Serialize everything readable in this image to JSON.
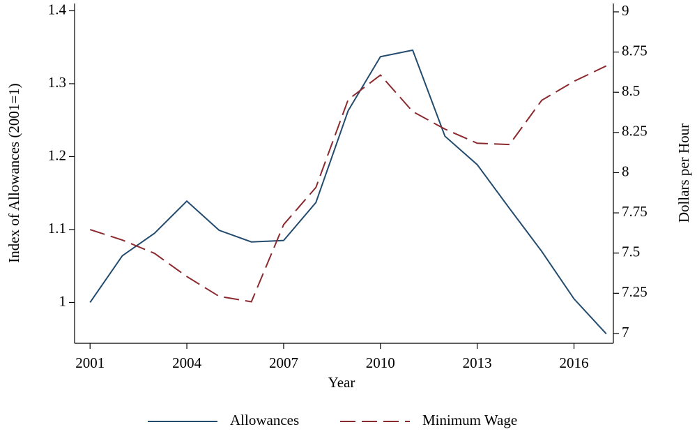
{
  "chart_data": {
    "type": "line",
    "x_label": "Year",
    "y_label": "Index of Allowances (2001=1)",
    "y2_label": "Dollars per Hour",
    "x": [
      2001,
      2002,
      2003,
      2004,
      2005,
      2006,
      2007,
      2008,
      2009,
      2010,
      2011,
      2012,
      2013,
      2014,
      2015,
      2016,
      2017
    ],
    "series": [
      {
        "name": "Allowances",
        "color": "#234b6e",
        "dash": "solid",
        "values": [
          1.0,
          1.064,
          1.095,
          1.139,
          1.099,
          1.083,
          1.085,
          1.137,
          1.263,
          1.337,
          1.346,
          1.228,
          1.189,
          1.129,
          1.07,
          1.005,
          0.957
        ]
      },
      {
        "name": "Minimum Wage",
        "color": "#8b2a2f",
        "dash": "dashed",
        "axis": "y2",
        "values": [
          7.646,
          7.581,
          7.498,
          7.354,
          7.231,
          7.197,
          7.677,
          7.908,
          8.454,
          8.607,
          8.38,
          8.271,
          8.183,
          8.175,
          8.45,
          8.568,
          8.664
        ]
      }
    ],
    "xlim": [
      2000.52,
      2017.22
    ],
    "xticks": [
      2001,
      2004,
      2007,
      2010,
      2013,
      2016
    ],
    "ylim": [
      0.944,
      1.41
    ],
    "yticks": [
      1,
      1.1,
      1.2,
      1.3,
      1.4
    ],
    "y2lim": [
      6.939,
      9.052
    ],
    "y2ticks": [
      7,
      7.25,
      7.5,
      7.75,
      8,
      8.25,
      8.5,
      8.75,
      9
    ],
    "legend": "bottom"
  }
}
